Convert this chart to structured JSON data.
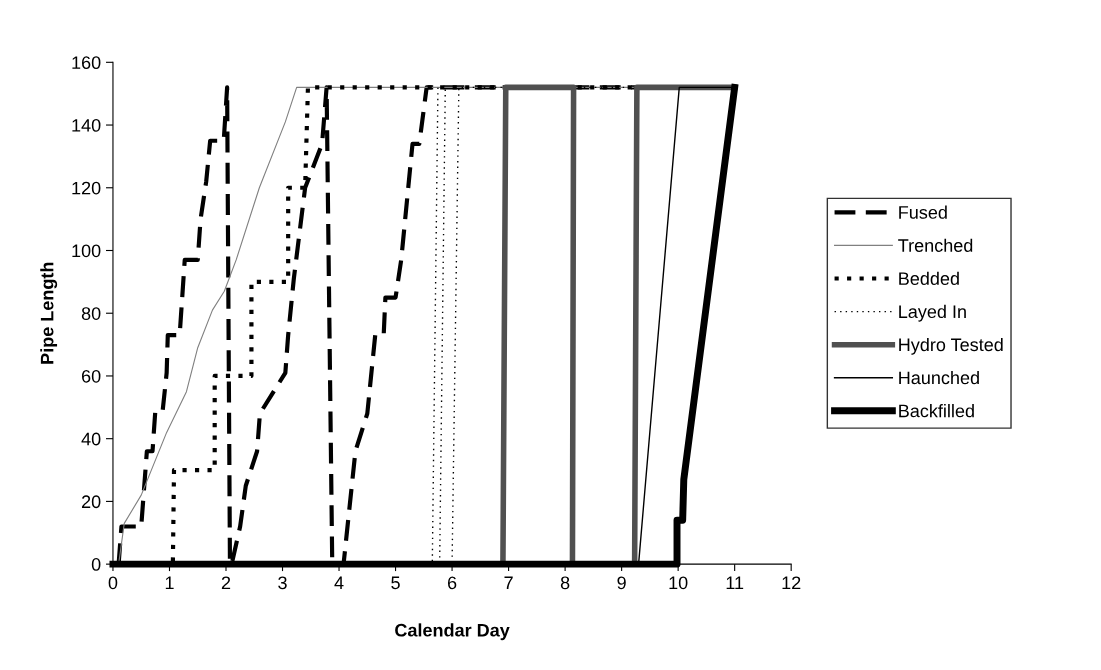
{
  "chart_data": {
    "type": "line",
    "xlabel": "Calendar Day",
    "ylabel": "Pipe Length",
    "xlim": [
      0,
      12
    ],
    "xticks": [
      0,
      1,
      2,
      3,
      4,
      5,
      6,
      7,
      8,
      9,
      10,
      11,
      12
    ],
    "ylim": [
      0,
      160
    ],
    "yticks": [
      0,
      20,
      40,
      60,
      80,
      100,
      120,
      140,
      160
    ],
    "grid": false,
    "legend": "right",
    "series": [
      {
        "name": "Fused",
        "color": "#000000",
        "line_style": "dashed",
        "x": [
          0.1,
          0.15,
          0.5,
          0.55,
          0.6,
          0.7,
          0.75,
          0.88,
          0.95,
          0.97,
          1.18,
          1.27,
          1.5,
          1.55,
          1.65,
          1.72,
          1.96,
          2.02,
          2.07,
          2.1,
          2.25,
          2.35,
          2.55,
          2.6,
          3.05,
          3.1,
          3.2,
          3.4,
          3.7,
          3.78,
          3.88,
          4.08,
          4.29,
          4.5,
          4.64,
          4.79,
          4.82,
          5.0,
          5.1,
          5.3,
          5.42,
          5.55,
          11
        ],
        "values": [
          0,
          12,
          12,
          24,
          36,
          36,
          49,
          49,
          61,
          73,
          73,
          97,
          97,
          110,
          122,
          135,
          135,
          152,
          0,
          0,
          12,
          25,
          36,
          48,
          61,
          73,
          91,
          120,
          134,
          152,
          0,
          0,
          36,
          48,
          73,
          73,
          85,
          85,
          97,
          134,
          134,
          152,
          152
        ]
      },
      {
        "name": "Trenched",
        "color": "#808080",
        "line_style": "solid",
        "x": [
          0,
          0.1,
          0.2,
          0.5,
          0.95,
          1.3,
          1.5,
          1.76,
          1.97,
          2.18,
          2.59,
          3.05,
          3.25,
          11
        ],
        "values": [
          0,
          0,
          13,
          22,
          42,
          55,
          69,
          81,
          87,
          97,
          120,
          141,
          152,
          152
        ]
      },
      {
        "name": "Bedded",
        "color": "#000000",
        "line_style": "dotted",
        "x": [
          0,
          1.06,
          1.08,
          1.8,
          1.8,
          2.45,
          2.45,
          3.1,
          3.1,
          3.4,
          3.45,
          11
        ],
        "values": [
          0,
          0,
          30,
          30,
          60,
          60,
          90,
          90,
          120,
          120,
          152,
          152
        ]
      },
      {
        "name": "Layed In",
        "color": "#000000",
        "line_style": "dotted",
        "x": [
          0,
          5.65,
          5.75,
          5.88,
          5.78,
          6.0,
          6.12,
          11
        ],
        "values": [
          0,
          0,
          152,
          152,
          0,
          0,
          152,
          152
        ]
      },
      {
        "name": "Hydro Tested",
        "color": "#505050",
        "line_style": "solid",
        "x": [
          0,
          6.9,
          6.95,
          8.15,
          8.13,
          9.23,
          9.27,
          11
        ],
        "values": [
          0,
          0,
          152,
          152,
          0,
          0,
          152,
          152
        ]
      },
      {
        "name": "Haunched",
        "color": "#000000",
        "line_style": "solid",
        "x": [
          0,
          9.3,
          10.02,
          11
        ],
        "values": [
          0,
          0,
          152,
          152
        ]
      },
      {
        "name": "Backfilled",
        "color": "#000000",
        "line_style": "solid",
        "x": [
          0,
          9.98,
          9.98,
          10.08,
          10.1,
          11.0
        ],
        "values": [
          0,
          0,
          14,
          14,
          27,
          152
        ]
      }
    ]
  }
}
